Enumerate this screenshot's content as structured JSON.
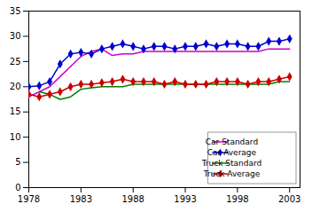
{
  "chart_data": {
    "type": "line",
    "xlim": [
      1978,
      2004
    ],
    "xticks": [
      1978,
      1983,
      1988,
      1993,
      1998,
      2003
    ],
    "ylim": [
      0,
      35
    ],
    "yticks": [
      0,
      5,
      10,
      15,
      20,
      25,
      30,
      35
    ],
    "grid": false,
    "legend": "lower right",
    "series": [
      {
        "name": "Car Standard",
        "color": "#cc00cc",
        "x": [
          1978,
          1979,
          1980,
          1981,
          1982,
          1983,
          1984,
          1985,
          1986,
          1987,
          1988,
          1989,
          1990,
          1991,
          1992,
          1993,
          1994,
          1995,
          1996,
          1997,
          1998,
          1999,
          2000,
          2001,
          2002,
          2003
        ],
        "values": [
          18,
          19,
          20,
          22,
          24,
          26,
          27,
          27.5,
          26.2,
          26.5,
          26.5,
          27,
          27,
          27,
          27,
          27,
          27,
          27,
          27,
          27,
          27,
          27,
          27,
          27.5,
          27.5,
          27.5
        ]
      },
      {
        "name": "Car Average",
        "color": "#0000cc",
        "marker": "diamond",
        "x": [
          1978,
          1979,
          1980,
          1981,
          1982,
          1983,
          1984,
          1985,
          1986,
          1987,
          1988,
          1989,
          1990,
          1991,
          1992,
          1993,
          1994,
          1995,
          1996,
          1997,
          1998,
          1999,
          2000,
          2001,
          2002,
          2003
        ],
        "values": [
          20,
          20.2,
          21,
          24.5,
          26.5,
          26.8,
          26.5,
          27.5,
          28,
          28.5,
          28,
          27.5,
          28,
          28,
          27.5,
          28,
          28,
          28.5,
          28,
          28.5,
          28.5,
          28,
          28,
          29,
          29,
          29.5
        ]
      },
      {
        "name": "Truck Standard",
        "color": "#008000",
        "x": [
          1979,
          1980,
          1981,
          1982,
          1983,
          1984,
          1985,
          1986,
          1987,
          1988,
          1989,
          1990,
          1991,
          1992,
          1993,
          1994,
          1995,
          1996,
          1997,
          1998,
          1999,
          2000,
          2001,
          2002,
          2003
        ],
        "values": [
          19,
          18.5,
          17.5,
          18,
          19.5,
          19.8,
          20,
          20,
          20,
          20.5,
          20.5,
          20.5,
          20.5,
          20.5,
          20.5,
          20.5,
          20.5,
          20.5,
          20.5,
          20.5,
          20.5,
          20.5,
          20.5,
          21,
          21
        ]
      },
      {
        "name": "Truck Average",
        "color": "#cc0000",
        "marker": "diamond",
        "x": [
          1978,
          1979,
          1980,
          1981,
          1982,
          1983,
          1984,
          1985,
          1986,
          1987,
          1988,
          1989,
          1990,
          1991,
          1992,
          1993,
          1994,
          1995,
          1996,
          1997,
          1998,
          1999,
          2000,
          2001,
          2002,
          2003
        ],
        "values": [
          18.5,
          18,
          18.5,
          19,
          20,
          20.5,
          20.5,
          20.8,
          21,
          21.5,
          21,
          21,
          21,
          20.5,
          21,
          20.5,
          20.5,
          20.5,
          21,
          21,
          21,
          20.5,
          21,
          21,
          21.5,
          22
        ]
      }
    ]
  }
}
